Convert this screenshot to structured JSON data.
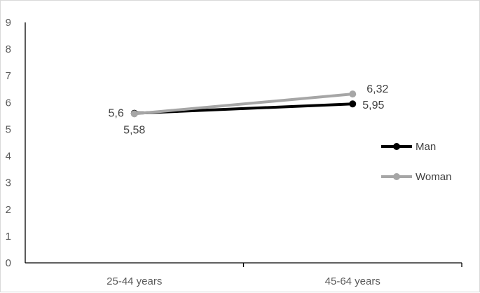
{
  "chart_data": {
    "type": "line",
    "categories": [
      "25-44 years",
      "45-64 years"
    ],
    "series": [
      {
        "name": "Man",
        "values": [
          5.6,
          5.95
        ],
        "labels": [
          "5,6",
          "5,95"
        ],
        "color": "#000000"
      },
      {
        "name": "Woman",
        "values": [
          5.58,
          6.32
        ],
        "labels": [
          "5,58",
          "6,32"
        ],
        "color": "#a6a6a6"
      }
    ],
    "ylim": [
      0,
      9
    ],
    "yticks": [
      "0",
      "1",
      "2",
      "3",
      "4",
      "5",
      "6",
      "7",
      "8",
      "9"
    ],
    "grid": false,
    "legend": "right",
    "axis_color": "#000000",
    "tick_color": "#595959"
  }
}
